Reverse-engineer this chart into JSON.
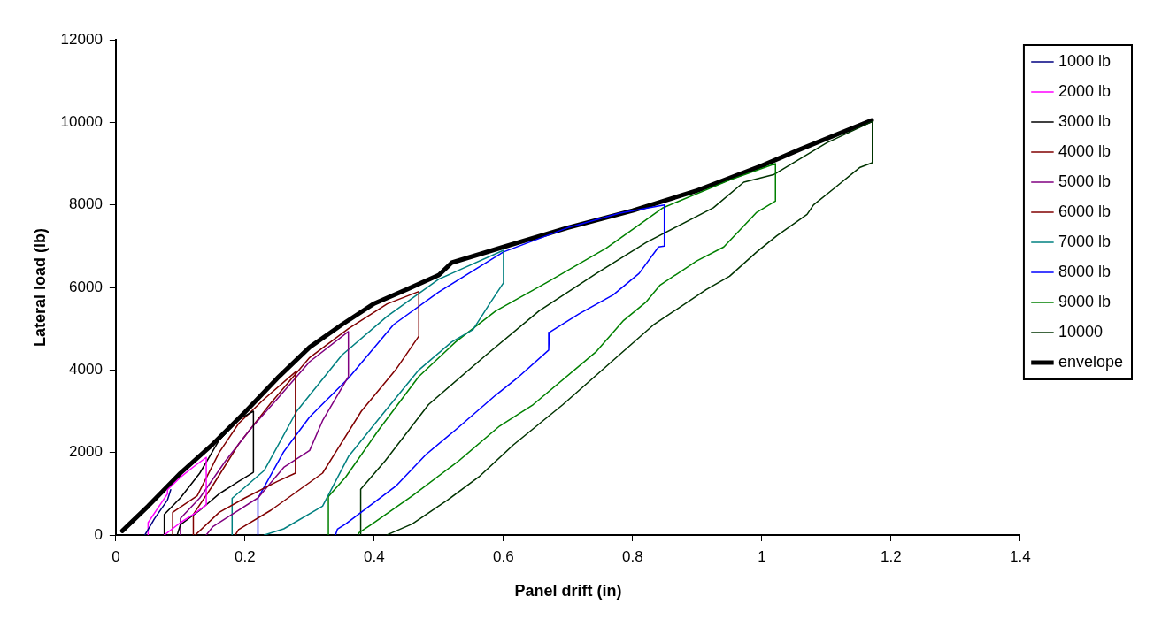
{
  "chart_data": {
    "type": "line",
    "xlabel": "Panel drift (in)",
    "ylabel": "Lateral load (lb)",
    "xlim": [
      0,
      1.4
    ],
    "xticks": [
      0,
      0.2,
      0.4,
      0.6,
      0.8,
      1,
      1.2,
      1.4
    ],
    "ylim": [
      0,
      12000
    ],
    "yticks": [
      0,
      2000,
      4000,
      6000,
      8000,
      10000,
      12000
    ],
    "grid": false,
    "legend": "right",
    "marker": "none",
    "line_style": "solid",
    "series": [
      {
        "name": "1000 lb",
        "color": "#000080",
        "x": [
          0.045,
          0.06,
          0.08,
          0.085
        ],
        "values": [
          0,
          400,
          850,
          1100
        ]
      },
      {
        "name": "2000 lb",
        "color": "#ff00ff",
        "x": [
          0.05,
          0.05,
          0.065,
          0.08,
          0.08,
          0.1,
          0.12,
          0.14,
          0.14,
          0.12,
          0.1,
          0.075
        ],
        "values": [
          0,
          300,
          650,
          1000,
          1100,
          1400,
          1650,
          1880,
          730,
          500,
          300,
          0
        ]
      },
      {
        "name": "3000 lb",
        "color": "#000000",
        "x": [
          0.075,
          0.075,
          0.1,
          0.13,
          0.16,
          0.19,
          0.213,
          0.213,
          0.19,
          0.16,
          0.13,
          0.1,
          0.095
        ],
        "values": [
          0,
          500,
          900,
          1500,
          2300,
          2800,
          3000,
          1520,
          1300,
          1000,
          600,
          250,
          0
        ]
      },
      {
        "name": "4000 lb",
        "color": "#800000",
        "x": [
          0.088,
          0.088,
          0.126,
          0.16,
          0.19,
          0.23,
          0.278,
          0.278,
          0.25,
          0.2,
          0.16,
          0.123
        ],
        "values": [
          0,
          550,
          950,
          2000,
          2700,
          3300,
          3950,
          1500,
          1300,
          900,
          550,
          0
        ]
      },
      {
        "name": "5000 lb",
        "color": "#800080",
        "x": [
          0.1,
          0.1,
          0.13,
          0.17,
          0.21,
          0.25,
          0.3,
          0.36,
          0.36,
          0.32,
          0.3,
          0.26,
          0.22,
          0.18,
          0.15,
          0.14
        ],
        "values": [
          0,
          400,
          900,
          1800,
          2600,
          3300,
          4200,
          4930,
          3840,
          2770,
          2050,
          1640,
          900,
          500,
          200,
          0
        ]
      },
      {
        "name": "6000 lb",
        "color": "#800000",
        "x": [
          0.12,
          0.12,
          0.15,
          0.19,
          0.24,
          0.3,
          0.36,
          0.42,
          0.469,
          0.469,
          0.433,
          0.38,
          0.32,
          0.24,
          0.19,
          0.185
        ],
        "values": [
          0,
          500,
          1200,
          2200,
          3200,
          4300,
          5000,
          5600,
          5900,
          4820,
          4000,
          3000,
          1500,
          600,
          130,
          0
        ]
      },
      {
        "name": "7000 lb",
        "color": "#008080",
        "x": [
          0.18,
          0.18,
          0.23,
          0.28,
          0.35,
          0.42,
          0.5,
          0.6,
          0.6,
          0.578,
          0.553,
          0.52,
          0.469,
          0.413,
          0.36,
          0.32,
          0.26,
          0.23
        ],
        "values": [
          0,
          890,
          1570,
          3000,
          4360,
          5300,
          6200,
          6900,
          6110,
          5590,
          4980,
          4680,
          4000,
          2930,
          1900,
          700,
          150,
          0
        ]
      },
      {
        "name": "8000 lb",
        "color": "#0000ff",
        "x": [
          0.22,
          0.22,
          0.26,
          0.3,
          0.36,
          0.43,
          0.5,
          0.6,
          0.7,
          0.78,
          0.849,
          0.849,
          0.84,
          0.81,
          0.77,
          0.717,
          0.671,
          0.67,
          0.624,
          0.588,
          0.526,
          0.48,
          0.433,
          0.356,
          0.343,
          0.34
        ],
        "values": [
          0,
          890,
          2020,
          2860,
          3800,
          5100,
          5890,
          6860,
          7450,
          7800,
          8000,
          7000,
          6980,
          6340,
          5820,
          5360,
          4910,
          4480,
          3840,
          3390,
          2550,
          1950,
          1180,
          270,
          140,
          0
        ]
      },
      {
        "name": "9000 lb",
        "color": "#008000",
        "x": [
          0.329,
          0.329,
          0.356,
          0.407,
          0.469,
          0.526,
          0.588,
          0.666,
          0.759,
          0.847,
          0.95,
          1.021,
          1.021,
          0.992,
          0.941,
          0.899,
          0.842,
          0.821,
          0.786,
          0.744,
          0.646,
          0.594,
          0.531,
          0.459,
          0.397,
          0.376,
          0.375
        ],
        "values": [
          0,
          930,
          1410,
          2550,
          3840,
          4680,
          5430,
          6110,
          6950,
          7930,
          8600,
          9000,
          8090,
          7820,
          6980,
          6640,
          6050,
          5650,
          5200,
          4450,
          3160,
          2640,
          1800,
          950,
          270,
          50,
          0
        ]
      },
      {
        "name": "10000",
        "color": "#003300",
        "x": [
          0.379,
          0.379,
          0.417,
          0.484,
          0.573,
          0.655,
          0.744,
          0.821,
          0.925,
          0.972,
          1.018,
          1.1,
          1.171,
          1.171,
          1.152,
          1.111,
          1.08,
          1.07,
          1.023,
          0.992,
          0.95,
          0.914,
          0.832,
          0.779,
          0.692,
          0.615,
          0.562,
          0.511,
          0.459,
          0.422,
          0.42
        ],
        "values": [
          0,
          1110,
          1800,
          3160,
          4360,
          5430,
          6340,
          7090,
          7930,
          8550,
          8730,
          9500,
          10020,
          9020,
          8910,
          8390,
          8000,
          7770,
          7250,
          6860,
          6270,
          5950,
          5090,
          4360,
          3160,
          2180,
          1410,
          820,
          270,
          20,
          0
        ]
      },
      {
        "name": "envelope",
        "color": "#000000",
        "x": [
          0.01,
          0.05,
          0.1,
          0.15,
          0.2,
          0.25,
          0.3,
          0.35,
          0.4,
          0.45,
          0.5,
          0.52,
          0.6,
          0.7,
          0.8,
          0.9,
          1.0,
          1.06,
          1.17
        ],
        "values": [
          100,
          700,
          1500,
          2200,
          2980,
          3800,
          4550,
          5100,
          5610,
          5950,
          6300,
          6600,
          6980,
          7450,
          7860,
          8350,
          8950,
          9350,
          10050
        ]
      }
    ]
  }
}
